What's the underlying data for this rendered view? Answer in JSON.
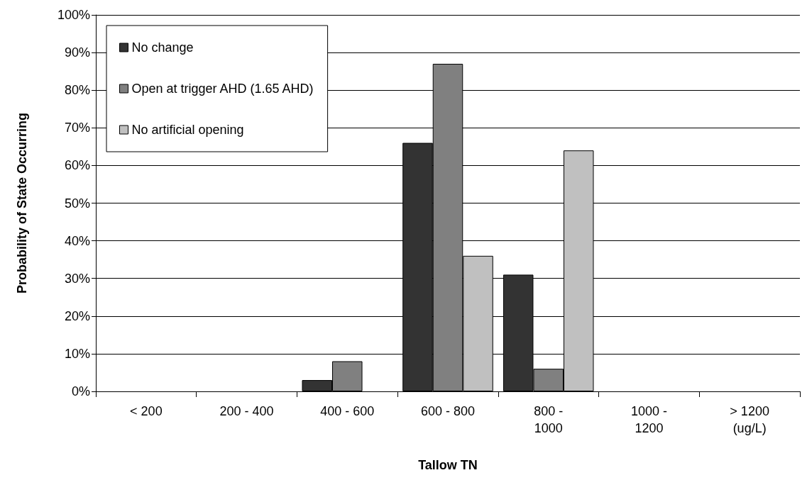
{
  "chart_data": {
    "type": "bar",
    "xlabel": "Tallow TN",
    "ylabel": "Probability of State Occurring",
    "categories": [
      "< 200",
      "200 - 400",
      "400 - 600",
      "600 - 800",
      "800 -\n1000",
      "1000 -\n1200",
      "> 1200\n(ug/L)"
    ],
    "series": [
      {
        "name": "No change",
        "color": "#333333",
        "values": [
          0,
          0,
          3,
          66,
          31,
          0,
          0
        ]
      },
      {
        "name": "Open at trigger AHD (1.65 AHD)",
        "color": "#808080",
        "values": [
          0,
          0,
          8,
          87,
          6,
          0,
          0
        ]
      },
      {
        "name": "No artificial opening",
        "color": "#c0c0c0",
        "values": [
          0,
          0,
          0,
          36,
          64,
          0,
          0
        ]
      }
    ],
    "ylim": [
      0,
      100
    ],
    "yticks": [
      {
        "value": 0,
        "label": "0%"
      },
      {
        "value": 10,
        "label": "10%"
      },
      {
        "value": 20,
        "label": "20%"
      },
      {
        "value": 30,
        "label": "30%"
      },
      {
        "value": 40,
        "label": "40%"
      },
      {
        "value": 50,
        "label": "50%"
      },
      {
        "value": 60,
        "label": "60%"
      },
      {
        "value": 70,
        "label": "70%"
      },
      {
        "value": 80,
        "label": "80%"
      },
      {
        "value": 90,
        "label": "90%"
      },
      {
        "value": 100,
        "label": "100%"
      }
    ],
    "grid": "y",
    "legend": "top left"
  }
}
